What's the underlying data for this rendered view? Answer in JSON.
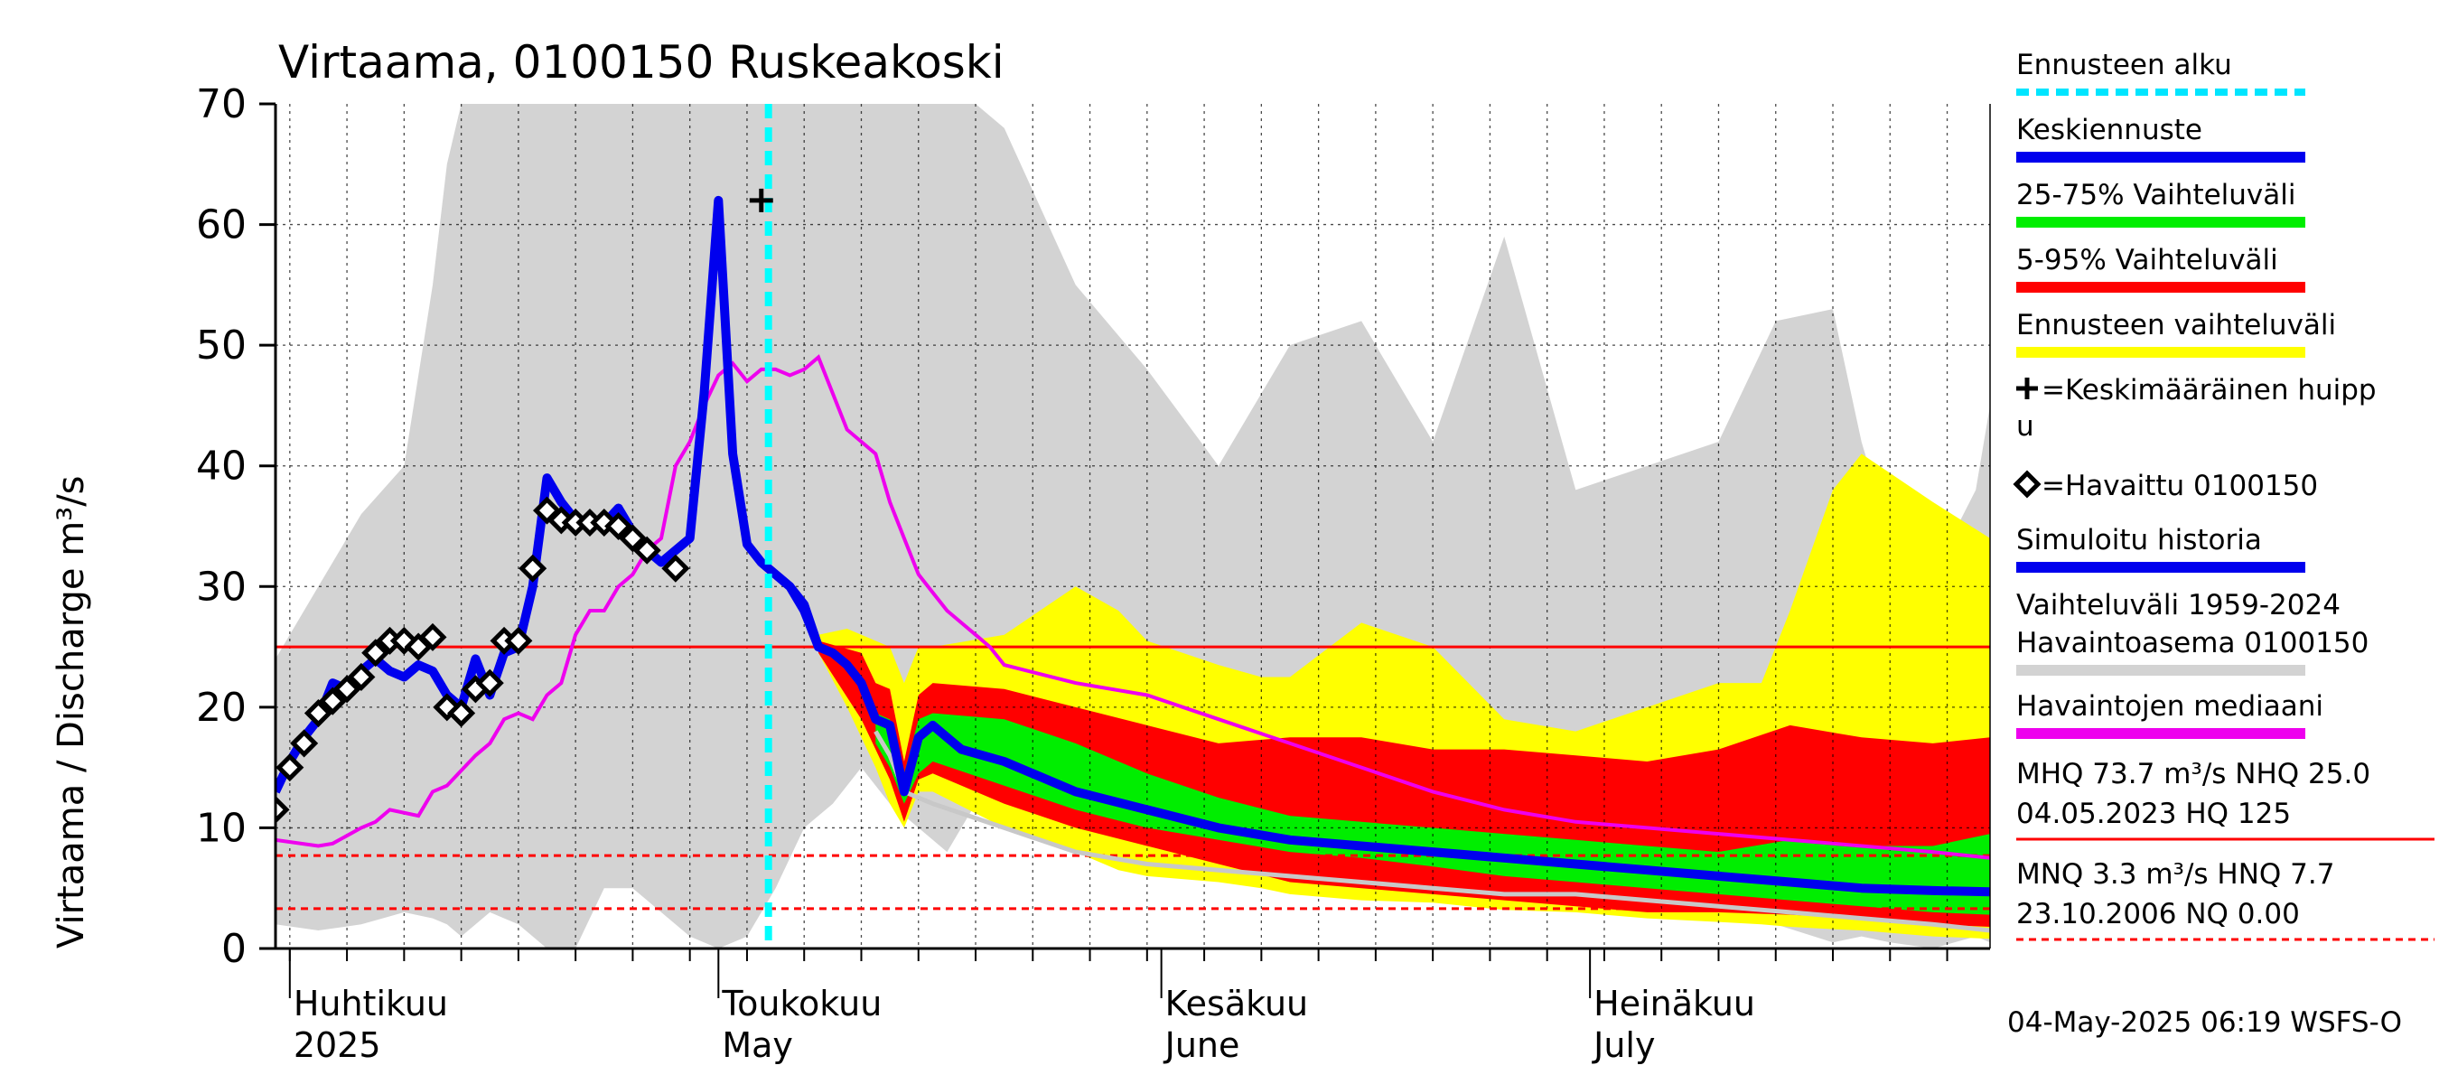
{
  "title": "Virtaama, 0100150 Ruskeakoski",
  "ylabel": "Virtaama / Discharge   m³/s",
  "footer": "04-May-2025 06:19 WSFS-O",
  "colors": {
    "history": "#d3d3d3",
    "forecast_range": "#ffff00",
    "p5_95": "#ff0000",
    "p25_75": "#00ee00",
    "median_forecast": "#0000ee",
    "simulated": "#0000ee",
    "observed_median": "#ee00ee",
    "forecast_start": "#00ffff",
    "reference": "#ff0000"
  },
  "legend": [
    {
      "label": "Ennusteen alku",
      "kind": "dashed",
      "color": "#00e5ff"
    },
    {
      "label": "Keskiennuste",
      "kind": "line",
      "color": "#0000ee"
    },
    {
      "label": "25-75% Vaihteluväli",
      "kind": "line",
      "color": "#00ee00"
    },
    {
      "label": "5-95% Vaihteluväli",
      "kind": "line",
      "color": "#ff0000"
    },
    {
      "label": "Ennusteen vaihteluväli",
      "kind": "line",
      "color": "#ffff00"
    },
    {
      "label": "=Keskimääräinen huipp",
      "label2": "u",
      "kind": "plus",
      "color": "#000000"
    },
    {
      "label": "=Havaittu 0100150",
      "kind": "diamond",
      "color": "#000000"
    },
    {
      "label": "Simuloitu historia",
      "kind": "line",
      "color": "#0000ee"
    },
    {
      "label": "Vaihteluväli 1959-2024",
      "label2": " Havaintoasema 0100150",
      "kind": "line",
      "color": "#d3d3d3"
    },
    {
      "label": "Havaintojen mediaani",
      "kind": "line",
      "color": "#ee00ee"
    }
  ],
  "stats": [
    {
      "line1": "MHQ 73.7 m³/s NHQ 25.0",
      "line2": "04.05.2023 HQ  125",
      "color": "#ff0000",
      "style": "solid"
    },
    {
      "line1": "MNQ  3.3 m³/s HNQ  7.7",
      "line2": "23.10.2006 NQ 0.00",
      "color": "#ff0000",
      "style": "dashed"
    }
  ],
  "month_labels": [
    {
      "fi": "Huhtikuu",
      "en": "2025",
      "day": 0
    },
    {
      "fi": "Toukokuu",
      "en": "May",
      "day": 30
    },
    {
      "fi": "Kesäkuu",
      "en": "June",
      "day": 61
    },
    {
      "fi": "Heinäkuu",
      "en": "July",
      "day": 91
    }
  ],
  "chart_data": {
    "type": "line",
    "title": "Virtaama, 0100150 Ruskeakoski",
    "ylabel": "Virtaama / Discharge   m³/s",
    "ylim": [
      0,
      70
    ],
    "yticks": [
      0,
      10,
      20,
      30,
      40,
      50,
      60,
      70
    ],
    "x_unit": "day since 2025-04-01",
    "xlim": [
      -1,
      119
    ],
    "grid": true,
    "forecast_start_day": 33.5,
    "reference_lines": [
      {
        "value": 25.0,
        "style": "solid"
      },
      {
        "value": 7.7,
        "style": "dashed"
      },
      {
        "value": 3.3,
        "style": "dashed"
      },
      {
        "value": 0.0,
        "style": "dashed"
      }
    ],
    "average_peak": {
      "day": 33,
      "value": 62
    },
    "observed": {
      "name": "Havaittu 0100150",
      "points": [
        [
          -1,
          11.5
        ],
        [
          0,
          15
        ],
        [
          1,
          17
        ],
        [
          2,
          19.5
        ],
        [
          3,
          20.5
        ],
        [
          4,
          21.5
        ],
        [
          5,
          22.5
        ],
        [
          6,
          24.5
        ],
        [
          7,
          25.5
        ],
        [
          8,
          25.5
        ],
        [
          9,
          25
        ],
        [
          10,
          25.8
        ],
        [
          11,
          20
        ],
        [
          12,
          19.5
        ],
        [
          13,
          21.5
        ],
        [
          14,
          22
        ],
        [
          15,
          25.5
        ],
        [
          16,
          25.5
        ],
        [
          17,
          31.5
        ],
        [
          18,
          36.3
        ],
        [
          19,
          35.5
        ],
        [
          20,
          35.3
        ],
        [
          21,
          35.3
        ],
        [
          22,
          35.3
        ],
        [
          23,
          35
        ],
        [
          24,
          34
        ],
        [
          25,
          33
        ],
        [
          27,
          31.5
        ]
      ]
    },
    "simulated": {
      "name": "Simuloitu historia",
      "points": [
        [
          -1,
          13
        ],
        [
          0,
          15.5
        ],
        [
          1,
          17.5
        ],
        [
          2,
          19
        ],
        [
          3,
          22
        ],
        [
          4,
          21.5
        ],
        [
          5,
          23
        ],
        [
          6,
          24
        ],
        [
          7,
          23
        ],
        [
          8,
          22.5
        ],
        [
          9,
          23.5
        ],
        [
          10,
          23
        ],
        [
          11,
          21
        ],
        [
          12,
          20
        ],
        [
          13,
          24
        ],
        [
          14,
          21
        ],
        [
          15,
          24.5
        ],
        [
          16,
          25
        ],
        [
          17,
          30
        ],
        [
          18,
          39
        ],
        [
          19,
          37
        ],
        [
          20,
          35.5
        ],
        [
          21,
          35
        ],
        [
          22,
          35.2
        ],
        [
          23,
          36.5
        ],
        [
          24,
          34.5
        ],
        [
          25,
          33
        ],
        [
          26,
          32
        ],
        [
          27,
          33
        ],
        [
          28,
          34
        ],
        [
          29,
          46
        ],
        [
          30,
          62
        ],
        [
          31,
          41
        ],
        [
          32,
          33.5
        ],
        [
          33,
          32
        ],
        [
          34,
          31
        ],
        [
          35,
          30
        ],
        [
          36,
          28
        ],
        [
          37,
          25
        ]
      ]
    },
    "observed_median": {
      "name": "Havaintojen mediaani",
      "points": [
        [
          -1,
          9
        ],
        [
          2,
          8.5
        ],
        [
          3,
          8.7
        ],
        [
          5,
          10
        ],
        [
          6,
          10.5
        ],
        [
          7,
          11.5
        ],
        [
          9,
          11
        ],
        [
          10,
          13
        ],
        [
          11,
          13.5
        ],
        [
          13,
          16
        ],
        [
          14,
          17
        ],
        [
          15,
          19
        ],
        [
          16,
          19.5
        ],
        [
          17,
          19
        ],
        [
          18,
          21
        ],
        [
          19,
          22
        ],
        [
          20,
          26
        ],
        [
          21,
          28
        ],
        [
          22,
          28
        ],
        [
          23,
          30
        ],
        [
          24,
          31
        ],
        [
          25,
          33
        ],
        [
          26,
          34
        ],
        [
          27,
          40
        ],
        [
          28,
          42
        ],
        [
          29,
          45
        ],
        [
          30,
          47.5
        ],
        [
          31,
          48.5
        ],
        [
          32,
          47
        ],
        [
          33,
          48
        ],
        [
          34,
          48
        ],
        [
          35,
          47.5
        ],
        [
          36,
          48
        ],
        [
          37,
          49
        ],
        [
          38,
          46
        ],
        [
          39,
          43
        ],
        [
          41,
          41
        ],
        [
          42,
          37
        ],
        [
          43,
          34
        ],
        [
          44,
          31
        ],
        [
          45,
          29.5
        ],
        [
          46,
          28
        ],
        [
          47,
          27
        ],
        [
          48,
          26
        ],
        [
          49,
          25
        ],
        [
          50,
          23.5
        ],
        [
          55,
          22
        ],
        [
          60,
          21
        ],
        [
          65,
          19
        ],
        [
          70,
          17
        ],
        [
          75,
          15
        ],
        [
          80,
          13
        ],
        [
          85,
          11.5
        ],
        [
          90,
          10.5
        ],
        [
          95,
          10
        ],
        [
          100,
          9.5
        ],
        [
          105,
          9
        ],
        [
          110,
          8.5
        ],
        [
          115,
          8
        ],
        [
          119,
          7.5
        ]
      ]
    },
    "median_forecast": {
      "name": "Keskiennuste",
      "points": [
        [
          33,
          32
        ],
        [
          34,
          31
        ],
        [
          35,
          30
        ],
        [
          36,
          28.5
        ],
        [
          37,
          25
        ],
        [
          38,
          24.5
        ],
        [
          39,
          23.5
        ],
        [
          40,
          22
        ],
        [
          41,
          19
        ],
        [
          42,
          18.5
        ],
        [
          43,
          13
        ],
        [
          44,
          17.5
        ],
        [
          45,
          18.5
        ],
        [
          46,
          17.5
        ],
        [
          47,
          16.5
        ],
        [
          50,
          15.5
        ],
        [
          55,
          13
        ],
        [
          60,
          11.5
        ],
        [
          65,
          10
        ],
        [
          70,
          9
        ],
        [
          75,
          8.5
        ],
        [
          80,
          8
        ],
        [
          85,
          7.5
        ],
        [
          90,
          7
        ],
        [
          95,
          6.5
        ],
        [
          100,
          6
        ],
        [
          105,
          5.5
        ],
        [
          110,
          5
        ],
        [
          115,
          4.8
        ],
        [
          119,
          4.7
        ]
      ]
    },
    "band_25_75": {
      "name": "25-75% Vaihteluväli",
      "x": [
        41,
        42,
        43,
        44,
        45,
        50,
        55,
        60,
        65,
        70,
        75,
        80,
        85,
        90,
        95,
        100,
        105,
        110,
        115,
        119
      ],
      "lower": [
        17,
        15,
        12,
        14.5,
        15.5,
        13.5,
        11.5,
        10,
        9,
        8,
        7.5,
        6.8,
        6,
        5.5,
        5,
        4.5,
        4,
        3.5,
        3,
        2.8
      ],
      "upper": [
        19.5,
        19,
        14.5,
        19,
        19.5,
        19,
        17,
        14.5,
        12.5,
        11,
        10.5,
        10,
        9.5,
        9,
        8.5,
        8,
        9,
        8.5,
        8.5,
        9.5
      ]
    },
    "band_5_95": {
      "name": "5-95% Vaihteluväli",
      "x": [
        37,
        40,
        41,
        42,
        43,
        44,
        45,
        50,
        55,
        60,
        65,
        70,
        75,
        80,
        85,
        90,
        95,
        100,
        105,
        110,
        115,
        119
      ],
      "lower": [
        24.5,
        19,
        16.5,
        14,
        10.5,
        14,
        14.5,
        12,
        10,
        8.5,
        7,
        5.5,
        5,
        4.5,
        4,
        3.5,
        3,
        3,
        2.8,
        2.5,
        2,
        1.8
      ],
      "upper": [
        25.5,
        24.5,
        22,
        21.5,
        15.5,
        21,
        22,
        21.5,
        20,
        18.5,
        17,
        17.5,
        17.5,
        16.5,
        16.5,
        16,
        15.5,
        16.5,
        18.5,
        17.5,
        17,
        17.5
      ]
    },
    "forecast_range": {
      "name": "Ennusteen vaihteluväli",
      "x": [
        37,
        39,
        41,
        42,
        43,
        44,
        45,
        50,
        55,
        58,
        60,
        65,
        68,
        70,
        75,
        80,
        85,
        90,
        95,
        100,
        103,
        105,
        108,
        110,
        115,
        119
      ],
      "lower": [
        24.5,
        20,
        15,
        12,
        10,
        13,
        13,
        10,
        8,
        6.5,
        6,
        5.5,
        5,
        4.5,
        4,
        3.8,
        3.2,
        3,
        2.5,
        2.2,
        2,
        1.8,
        1.6,
        1.5,
        1,
        0.8
      ],
      "upper": [
        26,
        26.5,
        25.5,
        25,
        22,
        25,
        25,
        26,
        30,
        28,
        25.5,
        23.5,
        22.5,
        22.5,
        27,
        25,
        19,
        18,
        20,
        22,
        22,
        28,
        38,
        41,
        37,
        34
      ]
    },
    "history_range": {
      "name": "Vaihteluväli 1959-2024 Havaintoasema 0100150",
      "x": [
        -1,
        2,
        5,
        8,
        10,
        11,
        12,
        14,
        16,
        18,
        20,
        22,
        24,
        26,
        28,
        30,
        32,
        34,
        36,
        38,
        40,
        42,
        44,
        46,
        48,
        50,
        55,
        60,
        65,
        70,
        75,
        80,
        85,
        90,
        95,
        100,
        104,
        108,
        110,
        112,
        115,
        118,
        119
      ],
      "lower": [
        2,
        1.5,
        2,
        3,
        2.5,
        2,
        1,
        3,
        2,
        0,
        0,
        5,
        5,
        3,
        1,
        0,
        1,
        5,
        10,
        12,
        15,
        12,
        10,
        8,
        12,
        15,
        12,
        8,
        10,
        8,
        7,
        5,
        5,
        4,
        3,
        3,
        2,
        0.5,
        1,
        0.5,
        0,
        1,
        0.5
      ],
      "upper": [
        24,
        30,
        36,
        40,
        55,
        65,
        70,
        70,
        70,
        70,
        70,
        70,
        70,
        70,
        70,
        70,
        70,
        70,
        70,
        70,
        70,
        70,
        70,
        70,
        70,
        68,
        55,
        48,
        40,
        50,
        52,
        42,
        59,
        38,
        40,
        42,
        52,
        53,
        42,
        34,
        31,
        38,
        45
      ]
    },
    "history_dry_line": {
      "name": "Vaihteluväli 1959-2024 Havaintoasema 0100150",
      "points": [
        [
          41,
          18
        ],
        [
          42,
          16
        ],
        [
          43,
          13
        ],
        [
          45,
          12
        ],
        [
          50,
          10
        ],
        [
          55,
          8
        ],
        [
          60,
          7
        ],
        [
          65,
          6.5
        ],
        [
          70,
          6
        ],
        [
          75,
          5.5
        ],
        [
          80,
          5
        ],
        [
          85,
          4.5
        ],
        [
          90,
          4.5
        ],
        [
          95,
          4
        ],
        [
          100,
          3.5
        ],
        [
          105,
          3
        ],
        [
          110,
          2.5
        ],
        [
          115,
          2
        ],
        [
          119,
          1.5
        ]
      ]
    }
  }
}
